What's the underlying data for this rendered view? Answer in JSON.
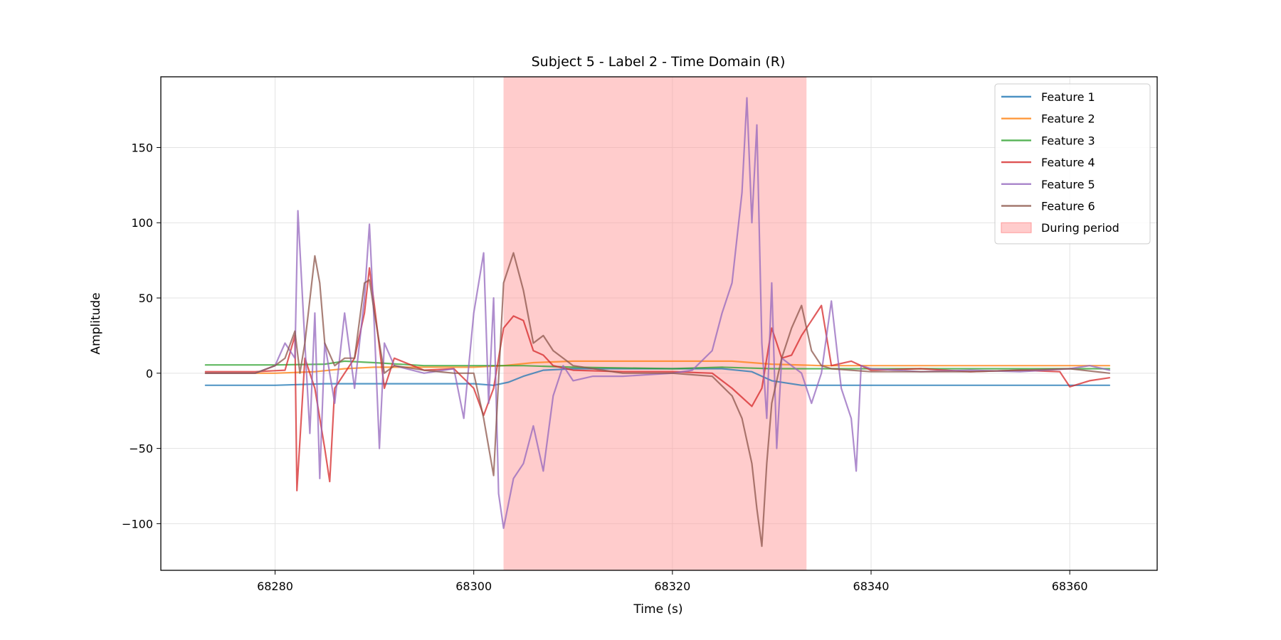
{
  "chart_data": {
    "type": "line",
    "title": "Subject 5 - Label 2 - Time Domain (R)",
    "xlabel": "Time (s)",
    "ylabel": "Amplitude",
    "xlim": [
      68268.5,
      68368.8
    ],
    "ylim": [
      -131,
      197
    ],
    "xticks": [
      68280,
      68300,
      68320,
      68340,
      68360
    ],
    "xtick_labels": [
      "68280",
      "68300",
      "68320",
      "68340",
      "68360"
    ],
    "yticks": [
      -100,
      -50,
      0,
      50,
      100,
      150
    ],
    "ytick_labels": [
      "−100",
      "−50",
      "0",
      "50",
      "100",
      "150"
    ],
    "grid": true,
    "legend_position": "top-right",
    "shaded_region": {
      "label": "During period",
      "x_start": 68303,
      "x_end": 68333.5,
      "color": "#ff9999"
    },
    "series": [
      {
        "name": "Feature 1",
        "color": "#1f77b4",
        "x": [
          68273,
          68280,
          68285,
          68290,
          68295,
          68300,
          68302,
          68303.5,
          68305,
          68307,
          68310,
          68315,
          68320,
          68325,
          68328,
          68330,
          68333,
          68336,
          68340,
          68350,
          68360,
          68364
        ],
        "y": [
          -8,
          -8,
          -7,
          -7,
          -7,
          -7,
          -8,
          -6,
          -2,
          2,
          3,
          3,
          3,
          3,
          1,
          -5,
          -8,
          -8,
          -8,
          -8,
          -8,
          -8
        ]
      },
      {
        "name": "Feature 2",
        "color": "#ff7f0e",
        "x": [
          68273,
          68280,
          68284,
          68287,
          68290,
          68295,
          68300,
          68303,
          68306,
          68310,
          68320,
          68326,
          68328,
          68330,
          68335,
          68340,
          68350,
          68360,
          68364
        ],
        "y": [
          0,
          0,
          1,
          3,
          4,
          4,
          4,
          5,
          7,
          8,
          8,
          8,
          7,
          6,
          5,
          5,
          5,
          5,
          5
        ]
      },
      {
        "name": "Feature 3",
        "color": "#2ca02c",
        "x": [
          68273,
          68280,
          68285,
          68287,
          68290,
          68295,
          68300,
          68305,
          68310,
          68320,
          68325,
          68330,
          68335,
          68340,
          68350,
          68360,
          68364
        ],
        "y": [
          5.5,
          5.5,
          6,
          8,
          7,
          5,
          5,
          5,
          4,
          3,
          4,
          3,
          3,
          3,
          3,
          3,
          3
        ]
      },
      {
        "name": "Feature 4",
        "color": "#d62728",
        "x": [
          68273,
          68278,
          68281,
          68282,
          68282.2,
          68283,
          68284,
          68285,
          68285.5,
          68286,
          68287,
          68288,
          68289,
          68289.5,
          68290,
          68291,
          68292,
          68295,
          68298,
          68300,
          68301,
          68302,
          68303,
          68304,
          68305,
          68306,
          68307,
          68308,
          68310,
          68315,
          68320,
          68324,
          68326,
          68328,
          68329,
          68330,
          68331,
          68332,
          68333,
          68334,
          68335,
          68336,
          68338,
          68340,
          68345,
          68350,
          68355,
          68359,
          68360,
          68362,
          68364
        ],
        "y": [
          1,
          1,
          2,
          25,
          -78,
          10,
          -10,
          -50,
          -72,
          -10,
          0,
          10,
          40,
          70,
          45,
          -10,
          10,
          2,
          3,
          -10,
          -28,
          -10,
          30,
          38,
          35,
          15,
          12,
          5,
          2,
          1,
          1,
          0,
          -10,
          -22,
          -10,
          30,
          10,
          12,
          25,
          35,
          45,
          5,
          8,
          2,
          3,
          1,
          2,
          1,
          -9,
          -5,
          -3
        ]
      },
      {
        "name": "Feature 5",
        "color": "#9467bd",
        "x": [
          68273,
          68278,
          68280,
          68281,
          68282,
          68282.3,
          68283,
          68283.5,
          68284,
          68284.5,
          68285,
          68286,
          68287,
          68288,
          68289,
          68289.5,
          68290,
          68290.5,
          68291,
          68292,
          68295,
          68298,
          68299,
          68300,
          68301,
          68301.5,
          68302,
          68302.5,
          68303,
          68304,
          68305,
          68306,
          68307,
          68308,
          68309,
          68310,
          68312,
          68315,
          68320,
          68322,
          68324,
          68325,
          68326,
          68327,
          68327.5,
          68328,
          68328.5,
          68329,
          68329.5,
          68330,
          68330.5,
          68331,
          68332,
          68333,
          68334,
          68335,
          68336,
          68337,
          68338,
          68338.5,
          68339,
          68340,
          68345,
          68350,
          68355,
          68360,
          68362,
          68364
        ],
        "y": [
          0,
          0,
          5,
          20,
          10,
          108,
          20,
          -40,
          40,
          -70,
          20,
          -20,
          40,
          -10,
          50,
          99,
          30,
          -50,
          20,
          5,
          0,
          3,
          -30,
          40,
          80,
          -20,
          50,
          -80,
          -103,
          -70,
          -60,
          -35,
          -65,
          -15,
          5,
          -5,
          -2,
          -2,
          0,
          2,
          15,
          40,
          60,
          120,
          183,
          100,
          165,
          20,
          -30,
          60,
          -50,
          10,
          5,
          0,
          -20,
          0,
          48,
          -10,
          -30,
          -65,
          5,
          3,
          1,
          2,
          1,
          3,
          5,
          2
        ]
      },
      {
        "name": "Feature 6",
        "color": "#8c564b",
        "x": [
          68273,
          68278,
          68280,
          68281,
          68282,
          68282.5,
          68283,
          68284,
          68284.5,
          68285,
          68286,
          68287,
          68288,
          68289,
          68289.5,
          68290,
          68291,
          68292,
          68295,
          68298,
          68300,
          68301,
          68302,
          68303,
          68304,
          68305,
          68306,
          68307,
          68308,
          68310,
          68315,
          68320,
          68324,
          68326,
          68327,
          68328,
          68328.5,
          68329,
          68329.5,
          68330,
          68331,
          68332,
          68333,
          68334,
          68335,
          68336,
          68338,
          68340,
          68345,
          68350,
          68355,
          68360,
          68364
        ],
        "y": [
          0,
          0,
          5,
          10,
          28,
          0,
          20,
          78,
          60,
          20,
          5,
          10,
          10,
          60,
          62,
          40,
          0,
          5,
          2,
          0,
          0,
          -30,
          -68,
          60,
          80,
          55,
          20,
          25,
          15,
          5,
          0,
          0,
          -2,
          -15,
          -30,
          -60,
          -90,
          -115,
          -60,
          -20,
          10,
          30,
          45,
          15,
          5,
          3,
          2,
          1,
          1,
          1,
          2,
          3,
          0
        ]
      }
    ]
  }
}
